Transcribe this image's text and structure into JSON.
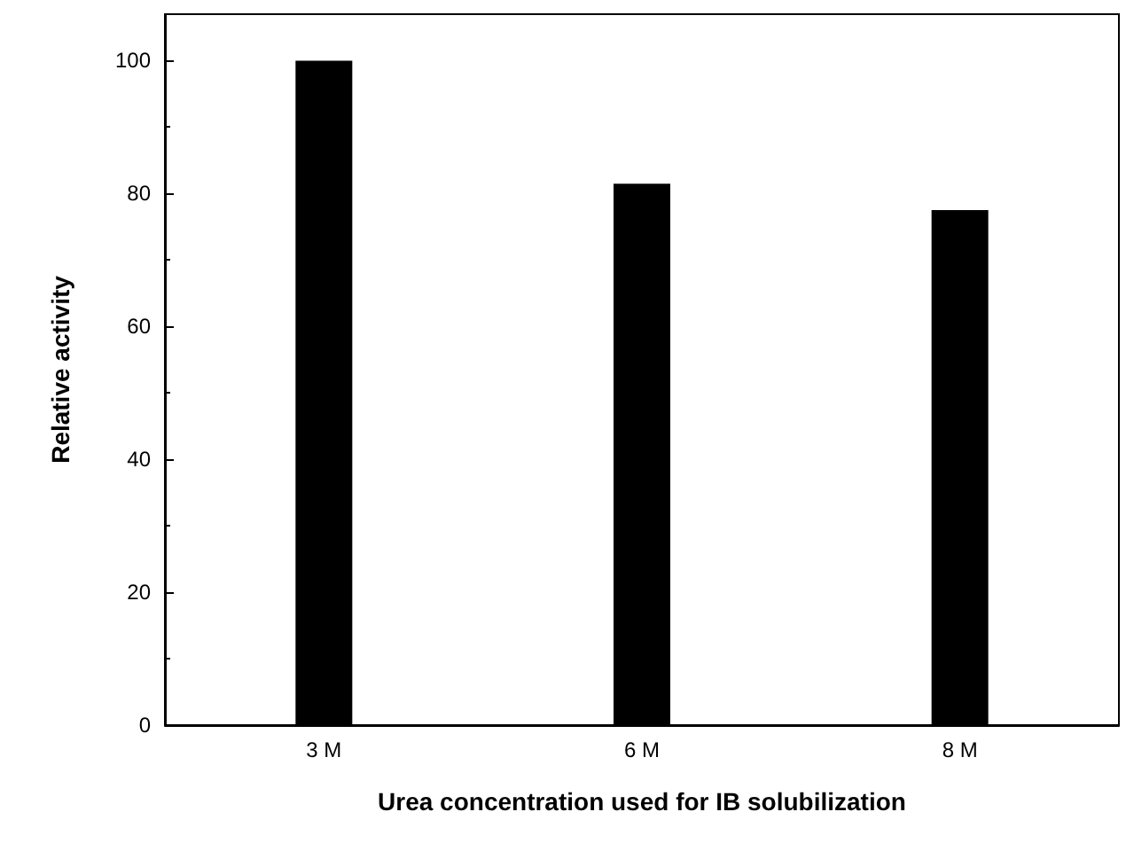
{
  "chart_data": {
    "type": "bar",
    "xlabel": "Urea concentration used for IB solubilization",
    "ylabel": "Relative activity",
    "categories": [
      "3 M",
      "6 M",
      "8 M"
    ],
    "values": [
      100,
      81.5,
      77.5
    ],
    "color": "#000000",
    "ylim": [
      0,
      107
    ],
    "yticks": [
      0,
      20,
      40,
      60,
      80,
      100
    ],
    "grid": false
  }
}
